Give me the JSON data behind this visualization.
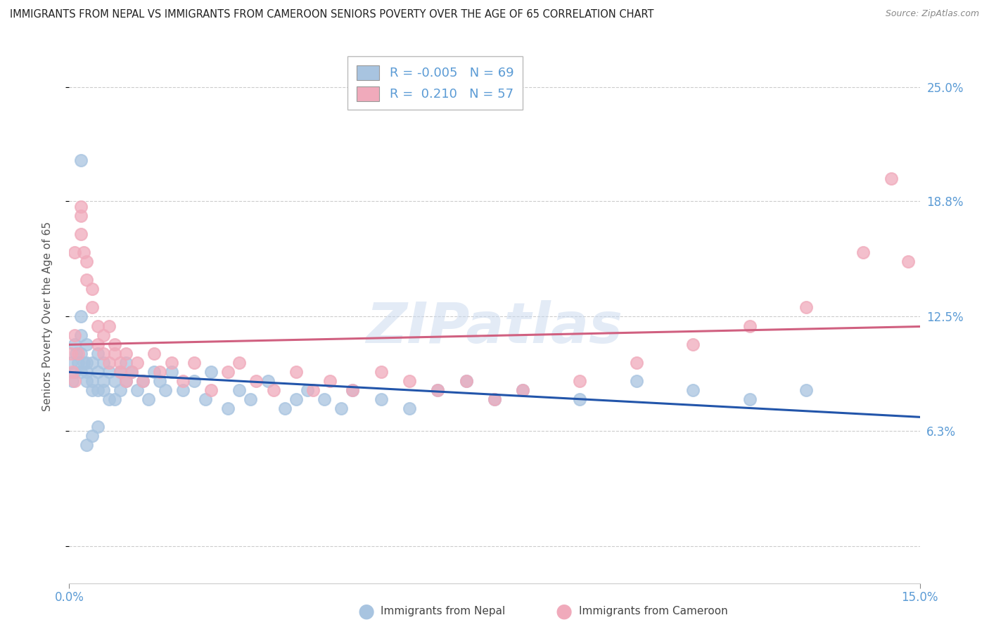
{
  "title": "IMMIGRANTS FROM NEPAL VS IMMIGRANTS FROM CAMEROON SENIORS POVERTY OVER THE AGE OF 65 CORRELATION CHART",
  "source": "Source: ZipAtlas.com",
  "ylabel": "Seniors Poverty Over the Age of 65",
  "x_min": 0.0,
  "x_max": 0.15,
  "y_min": -0.02,
  "y_max": 0.27,
  "y_ticks": [
    0.0,
    0.063,
    0.125,
    0.188,
    0.25
  ],
  "y_tick_labels": [
    "",
    "6.3%",
    "12.5%",
    "18.8%",
    "25.0%"
  ],
  "x_ticks": [
    0.0,
    0.15
  ],
  "x_tick_labels": [
    "0.0%",
    "15.0%"
  ],
  "nepal_R": -0.005,
  "nepal_N": 69,
  "cameroon_R": 0.21,
  "cameroon_N": 57,
  "nepal_color": "#a8c4e0",
  "cameroon_color": "#f0aabb",
  "nepal_line_color": "#2255aa",
  "cameroon_line_color": "#d06080",
  "background_color": "#ffffff",
  "grid_color": "#cccccc",
  "watermark": "ZIPatlas",
  "watermark_color": "#c8d8ee",
  "tick_label_color": "#5b9bd5",
  "legend_text_color": "#5b9bd5",
  "nepal_x": [
    0.0003,
    0.0006,
    0.001,
    0.001,
    0.0012,
    0.0015,
    0.002,
    0.002,
    0.002,
    0.002,
    0.0025,
    0.003,
    0.003,
    0.003,
    0.003,
    0.004,
    0.004,
    0.004,
    0.005,
    0.005,
    0.005,
    0.006,
    0.006,
    0.006,
    0.007,
    0.007,
    0.008,
    0.008,
    0.009,
    0.009,
    0.01,
    0.01,
    0.011,
    0.012,
    0.013,
    0.014,
    0.015,
    0.016,
    0.017,
    0.018,
    0.02,
    0.022,
    0.024,
    0.025,
    0.028,
    0.03,
    0.032,
    0.035,
    0.038,
    0.04,
    0.042,
    0.045,
    0.048,
    0.05,
    0.055,
    0.06,
    0.065,
    0.07,
    0.075,
    0.08,
    0.09,
    0.1,
    0.11,
    0.12,
    0.13,
    0.002,
    0.003,
    0.004,
    0.005
  ],
  "nepal_y": [
    0.1,
    0.09,
    0.095,
    0.11,
    0.105,
    0.1,
    0.125,
    0.115,
    0.105,
    0.095,
    0.1,
    0.09,
    0.1,
    0.11,
    0.095,
    0.085,
    0.1,
    0.09,
    0.095,
    0.105,
    0.085,
    0.09,
    0.1,
    0.085,
    0.08,
    0.095,
    0.09,
    0.08,
    0.095,
    0.085,
    0.1,
    0.09,
    0.095,
    0.085,
    0.09,
    0.08,
    0.095,
    0.09,
    0.085,
    0.095,
    0.085,
    0.09,
    0.08,
    0.095,
    0.075,
    0.085,
    0.08,
    0.09,
    0.075,
    0.08,
    0.085,
    0.08,
    0.075,
    0.085,
    0.08,
    0.075,
    0.085,
    0.09,
    0.08,
    0.085,
    0.08,
    0.09,
    0.085,
    0.08,
    0.085,
    0.21,
    0.055,
    0.06,
    0.065
  ],
  "cameroon_x": [
    0.0003,
    0.0006,
    0.001,
    0.001,
    0.0015,
    0.002,
    0.002,
    0.0025,
    0.003,
    0.003,
    0.004,
    0.004,
    0.005,
    0.005,
    0.006,
    0.006,
    0.007,
    0.007,
    0.008,
    0.008,
    0.009,
    0.009,
    0.01,
    0.01,
    0.011,
    0.012,
    0.013,
    0.015,
    0.016,
    0.018,
    0.02,
    0.022,
    0.025,
    0.028,
    0.03,
    0.033,
    0.036,
    0.04,
    0.043,
    0.046,
    0.05,
    0.055,
    0.06,
    0.065,
    0.07,
    0.075,
    0.08,
    0.09,
    0.1,
    0.11,
    0.12,
    0.13,
    0.14,
    0.145,
    0.148,
    0.001,
    0.002
  ],
  "cameroon_y": [
    0.105,
    0.095,
    0.115,
    0.09,
    0.105,
    0.185,
    0.17,
    0.16,
    0.145,
    0.155,
    0.14,
    0.13,
    0.12,
    0.11,
    0.115,
    0.105,
    0.12,
    0.1,
    0.11,
    0.105,
    0.095,
    0.1,
    0.09,
    0.105,
    0.095,
    0.1,
    0.09,
    0.105,
    0.095,
    0.1,
    0.09,
    0.1,
    0.085,
    0.095,
    0.1,
    0.09,
    0.085,
    0.095,
    0.085,
    0.09,
    0.085,
    0.095,
    0.09,
    0.085,
    0.09,
    0.08,
    0.085,
    0.09,
    0.1,
    0.11,
    0.12,
    0.13,
    0.16,
    0.2,
    0.155,
    0.16,
    0.18
  ]
}
